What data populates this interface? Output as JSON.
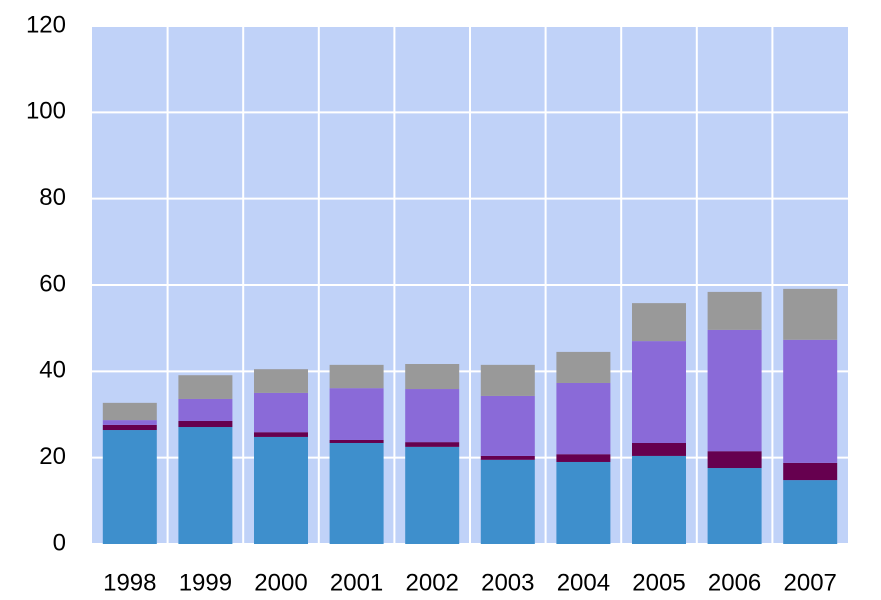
{
  "chart_data": {
    "type": "stacked_bar",
    "categories": [
      "1998",
      "1999",
      "2000",
      "2001",
      "2002",
      "2003",
      "2004",
      "2005",
      "2006",
      "2007"
    ],
    "series": [
      {
        "color": "#3e8fcc",
        "values": [
          26.4,
          27.1,
          24.8,
          23.4,
          22.5,
          19.5,
          19.0,
          20.4,
          17.6,
          14.8
        ]
      },
      {
        "color": "#66004f",
        "values": [
          1.2,
          1.4,
          1.1,
          0.7,
          1.1,
          0.9,
          1.8,
          3.0,
          3.9,
          4.0
        ]
      },
      {
        "color": "#8a6ad8",
        "values": [
          1.1,
          5.1,
          9.1,
          12.0,
          12.3,
          13.9,
          16.5,
          23.6,
          28.1,
          28.5
        ]
      },
      {
        "color": "#999999",
        "values": [
          4.0,
          5.5,
          5.5,
          5.4,
          5.8,
          7.2,
          7.2,
          8.8,
          8.8,
          11.8
        ]
      }
    ],
    "ylim": [
      0,
      120
    ],
    "yticks": [
      0,
      20,
      40,
      60,
      80,
      100,
      120
    ],
    "grid": true,
    "background": "#c0d2f8"
  }
}
